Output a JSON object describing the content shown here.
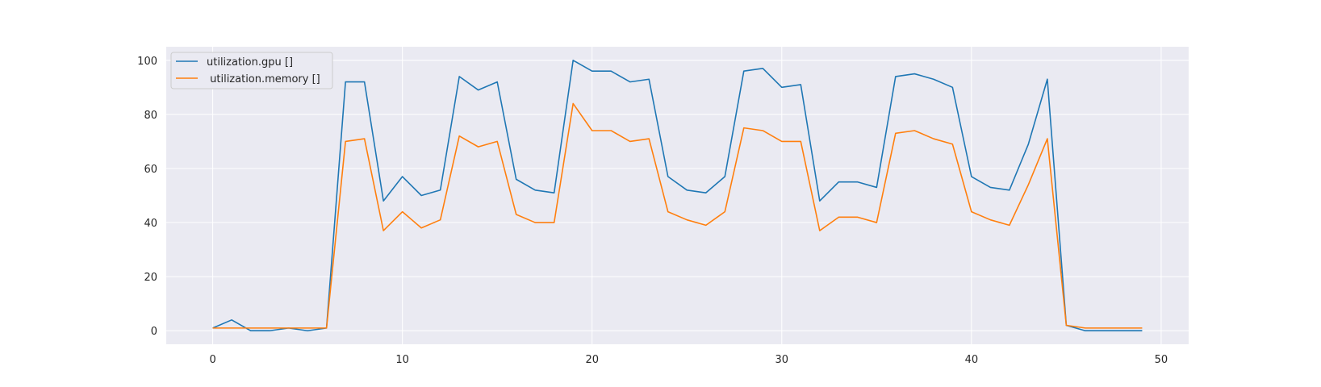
{
  "chart_data": {
    "type": "line",
    "title": "",
    "xlabel": "",
    "ylabel": "",
    "xlim": [
      -2.45,
      51.45
    ],
    "ylim": [
      -5,
      105
    ],
    "xticks": [
      0,
      10,
      20,
      30,
      40,
      50
    ],
    "yticks": [
      0,
      20,
      40,
      60,
      80,
      100
    ],
    "grid": true,
    "legend_position": "upper-left",
    "x": [
      0,
      1,
      2,
      3,
      4,
      5,
      6,
      7,
      8,
      9,
      10,
      11,
      12,
      13,
      14,
      15,
      16,
      17,
      18,
      19,
      20,
      21,
      22,
      23,
      24,
      25,
      26,
      27,
      28,
      29,
      30,
      31,
      32,
      33,
      34,
      35,
      36,
      37,
      38,
      39,
      40,
      41,
      42,
      43,
      44,
      45,
      46,
      47,
      48,
      49
    ],
    "series": [
      {
        "name": "utilization.gpu []",
        "color": "#1f77b4",
        "values": [
          1,
          4,
          0,
          0,
          1,
          0,
          1,
          92,
          92,
          48,
          57,
          50,
          52,
          94,
          89,
          92,
          56,
          52,
          51,
          100,
          96,
          96,
          92,
          93,
          57,
          52,
          51,
          57,
          96,
          97,
          90,
          91,
          48,
          55,
          55,
          53,
          94,
          95,
          93,
          90,
          57,
          53,
          52,
          69,
          93,
          2,
          0,
          0,
          0,
          0
        ]
      },
      {
        "name": " utilization.memory []",
        "color": "#ff7f0e",
        "values": [
          1,
          1,
          1,
          1,
          1,
          1,
          1,
          70,
          71,
          37,
          44,
          38,
          41,
          72,
          68,
          70,
          43,
          40,
          40,
          84,
          74,
          74,
          70,
          71,
          44,
          41,
          39,
          44,
          75,
          74,
          70,
          70,
          37,
          42,
          42,
          40,
          73,
          74,
          71,
          69,
          44,
          41,
          39,
          54,
          71,
          2,
          1,
          1,
          1,
          1
        ]
      }
    ]
  },
  "colors": {
    "plot_background": "#eaeaf2",
    "grid": "#ffffff",
    "legend_background": "#eaeaf2",
    "legend_border": "#cccccc"
  }
}
